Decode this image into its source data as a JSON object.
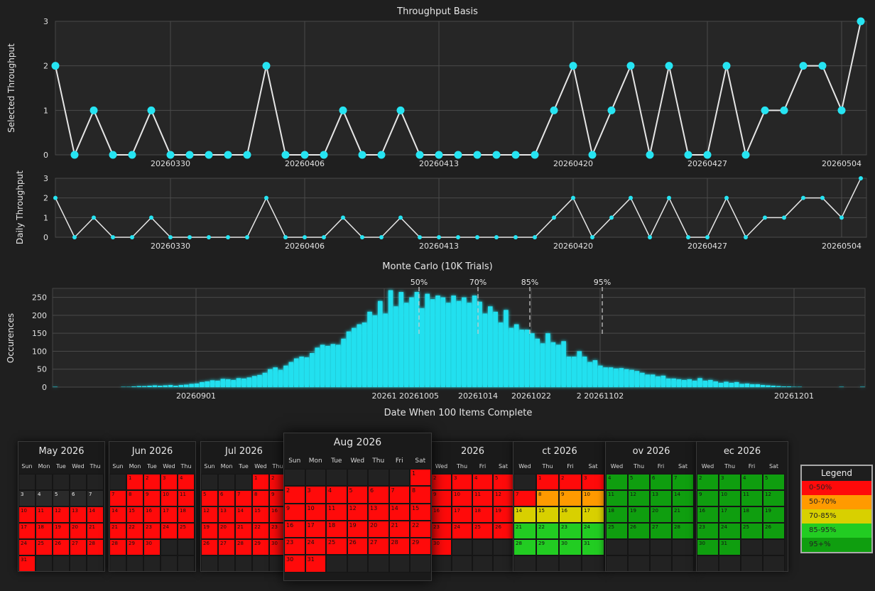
{
  "chart_data": [
    {
      "type": "line",
      "title": "Throughput Basis",
      "ylabel": "Selected Throughput",
      "ylim": [
        0,
        3
      ],
      "yticks": [
        0,
        1,
        2,
        3
      ],
      "xtick_labels": [
        "20260330",
        "20260406",
        "20260413",
        "20260420",
        "20260427",
        "20260504"
      ],
      "x": [
        "2026-03-24",
        "2026-03-25",
        "2026-03-26",
        "2026-03-27",
        "2026-03-28",
        "2026-03-29",
        "2026-03-30",
        "2026-03-31",
        "2026-04-01",
        "2026-04-02",
        "2026-04-03",
        "2026-04-04",
        "2026-04-05",
        "2026-04-06",
        "2026-04-07",
        "2026-04-08",
        "2026-04-09",
        "2026-04-10",
        "2026-04-11",
        "2026-04-12",
        "2026-04-13",
        "2026-04-14",
        "2026-04-15",
        "2026-04-16",
        "2026-04-17",
        "2026-04-18",
        "2026-04-19",
        "2026-04-20",
        "2026-04-21",
        "2026-04-22",
        "2026-04-23",
        "2026-04-24",
        "2026-04-25",
        "2026-04-26",
        "2026-04-27",
        "2026-04-28",
        "2026-04-29",
        "2026-04-30",
        "2026-05-01",
        "2026-05-02",
        "2026-05-03",
        "2026-05-04",
        "2026-05-05"
      ],
      "values": [
        2,
        0,
        1,
        0,
        0,
        1,
        0,
        0,
        0,
        0,
        0,
        2,
        0,
        0,
        0,
        1,
        0,
        0,
        1,
        0,
        0,
        0,
        0,
        0,
        0,
        0,
        1,
        2,
        0,
        1,
        2,
        0,
        2,
        0,
        0,
        2,
        0,
        1,
        1,
        2,
        2,
        1,
        3
      ],
      "grid": true
    },
    {
      "type": "line",
      "title": "",
      "ylabel": "Daily Throughput",
      "ylim": [
        0,
        3
      ],
      "yticks": [
        0,
        1,
        2,
        3
      ],
      "xtick_labels": [
        "20260330",
        "20260406",
        "20260413",
        "20260420",
        "20260427",
        "20260504"
      ],
      "values": [
        2,
        0,
        1,
        0,
        0,
        1,
        0,
        0,
        0,
        0,
        0,
        2,
        0,
        0,
        0,
        1,
        0,
        0,
        1,
        0,
        0,
        0,
        0,
        0,
        0,
        0,
        1,
        2,
        0,
        1,
        2,
        0,
        2,
        0,
        0,
        2,
        0,
        1,
        1,
        2,
        2,
        1,
        3
      ],
      "grid": true
    },
    {
      "type": "bar",
      "title": "Monte Carlo (10K Trials)",
      "xlabel": "Date When 100 Items Complete",
      "ylabel": "Occurences",
      "ylim": [
        0,
        275
      ],
      "yticks": [
        0,
        50,
        100,
        150,
        200,
        250
      ],
      "xtick_labels": [
        "20260901",
        "20261",
        "20261005",
        "20261014",
        "20261022",
        "2 20261102",
        "20261201"
      ],
      "x_start": "2026-08-24",
      "values": [
        1,
        0,
        0,
        0,
        0,
        0,
        0,
        0,
        0,
        0,
        0,
        0,
        0,
        1,
        1,
        2,
        3,
        3,
        4,
        5,
        4,
        5,
        6,
        4,
        6,
        7,
        9,
        10,
        14,
        16,
        19,
        18,
        23,
        22,
        20,
        25,
        24,
        27,
        31,
        34,
        40,
        50,
        55,
        48,
        60,
        70,
        80,
        85,
        83,
        95,
        110,
        118,
        115,
        120,
        118,
        135,
        155,
        165,
        175,
        180,
        210,
        200,
        240,
        205,
        270,
        225,
        265,
        235,
        250,
        265,
        220,
        260,
        245,
        255,
        250,
        235,
        255,
        240,
        250,
        235,
        255,
        238,
        205,
        225,
        210,
        180,
        215,
        165,
        175,
        160,
        160,
        150,
        135,
        122,
        150,
        125,
        118,
        128,
        85,
        85,
        100,
        85,
        70,
        75,
        60,
        55,
        55,
        52,
        53,
        50,
        48,
        45,
        40,
        35,
        35,
        30,
        32,
        24,
        24,
        22,
        20,
        22,
        18,
        25,
        18,
        20,
        16,
        12,
        15,
        12,
        14,
        9,
        10,
        8,
        8,
        6,
        5,
        4,
        3,
        2,
        2,
        1,
        1,
        0,
        0,
        0,
        0,
        0,
        0,
        0,
        1,
        0,
        0,
        0,
        1
      ],
      "percentiles": [
        {
          "label": "50%",
          "value": "2026-10-05"
        },
        {
          "label": "70%",
          "value": "2026-10-14"
        },
        {
          "label": "85%",
          "value": "2026-10-22"
        },
        {
          "label": "95%",
          "value": "2026-11-02"
        }
      ],
      "grid": true
    }
  ],
  "legend": {
    "title": "Legend",
    "items": [
      {
        "label": "0-50%",
        "color": "#ff0a0a"
      },
      {
        "label": "50-70%",
        "color": "#ff9a00"
      },
      {
        "label": "70-85%",
        "color": "#d8d000"
      },
      {
        "label": "85-95%",
        "color": "#22cc22"
      },
      {
        "label": "95+%",
        "color": "#0f9e0f"
      }
    ]
  },
  "calendars": [
    {
      "title": "May 2026",
      "dows": [
        "Sun",
        "Mon",
        "Tue",
        "Wed",
        "Thu"
      ],
      "colors": "x"
    },
    {
      "title": "Jun 2026",
      "dows": [
        "Sun",
        "Mon",
        "Tue",
        "Wed",
        "Thu"
      ],
      "colors": "x"
    },
    {
      "title": "Jul 2026",
      "dows": [
        "Sun",
        "Mon",
        "Tue",
        "Wed",
        "Thu"
      ],
      "colors": "x"
    },
    {
      "title": "Aug 2026",
      "dows": [
        "Sun",
        "Mon",
        "Tue",
        "Wed",
        "Thu",
        "Fri",
        "Sat"
      ],
      "colors": "x"
    },
    {
      "title": "2026",
      "dows": [
        "Wed",
        "Thu",
        "Fri",
        "Sat"
      ],
      "colors": "x"
    },
    {
      "title": "ct 2026",
      "dows": [
        "Wed",
        "Thu",
        "Fri",
        "Sat"
      ],
      "colors": "x"
    },
    {
      "title": "ov 2026",
      "dows": [
        "Wed",
        "Thu",
        "Fri",
        "Sat"
      ],
      "colors": "x"
    },
    {
      "title": "ec 2026",
      "dows": [
        "Wed",
        "Thu",
        "Fri",
        "Sat"
      ],
      "colors": "x"
    }
  ]
}
